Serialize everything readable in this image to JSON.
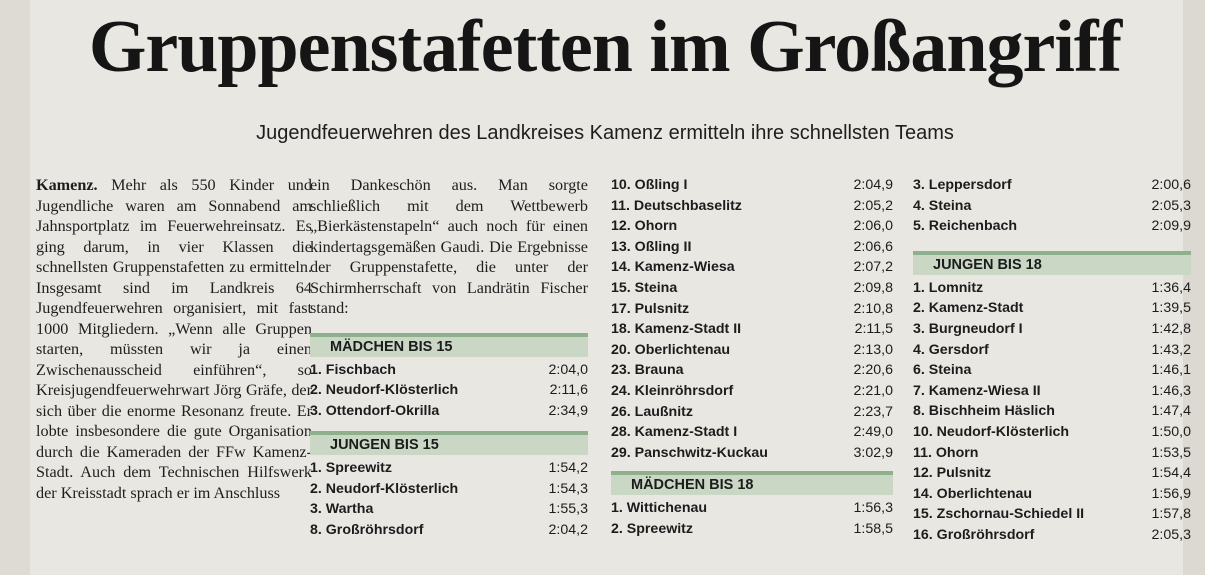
{
  "headline": "Gruppenstafetten im Großangriff",
  "subheadline": "Jugendfeuerwehren des Landkreises Kamenz ermitteln ihre schnellsten Teams",
  "article": {
    "lead": "Kamenz.",
    "para1": " Mehr als 550 Kinder und Jugendliche waren am Sonnabend am Jahnsportplatz im Feuerwehreinsatz. Es ging darum, in vier Klassen die schnellsten Gruppenstafetten zu ermitteln. Insgesamt sind im Landkreis 64 Jugendfeuerwehren organisiert, mit fast 1000 Mitgliedern. „Wenn alle Gruppen starten, müssten wir ja einen Zwischenausscheid einführen“, so Kreisjugendfeuerwehrwart Jörg Gräfe, der sich über die enorme Resonanz freute. Er lobte insbesondere die gute Organisation durch die Kameraden der FFw Kamenz-Stadt. Auch dem Technischen Hilfswerk der Kreisstadt sprach er im Anschluss",
    "para2": "ein Dankeschön aus. Man sorgte schließlich mit dem Wettbewerb „Bierkästenstapeln“ auch noch für einen kindertagsgemäßen Gaudi. Die Ergebnisse der Gruppenstafette, die unter der Schirmherrschaft von Landrätin Fischer stand:"
  },
  "sections": {
    "maedchen15": {
      "title": "MÄDCHEN BIS 15",
      "rows": [
        {
          "team": "1. Fischbach",
          "time": "2:04,0"
        },
        {
          "team": "2. Neudorf-Klösterlich",
          "time": "2:11,6"
        },
        {
          "team": "3. Ottendorf-Okrilla",
          "time": "2:34,9"
        }
      ]
    },
    "jungen15": {
      "title": "JUNGEN BIS 15",
      "rows": [
        {
          "team": "1. Spreewitz",
          "time": "1:54,2"
        },
        {
          "team": "2. Neudorf-Klösterlich",
          "time": "1:54,3"
        },
        {
          "team": "3. Wartha",
          "time": "1:55,3"
        },
        {
          "team": "8. Großröhrsdorf",
          "time": "2:04,2"
        }
      ]
    },
    "jungen15_cont": {
      "rows": [
        {
          "team": "10. Oßling I",
          "time": "2:04,9"
        },
        {
          "team": "11. Deutschbaselitz",
          "time": "2:05,2"
        },
        {
          "team": "12. Ohorn",
          "time": "2:06,0"
        },
        {
          "team": "13. Oßling II",
          "time": "2:06,6"
        },
        {
          "team": "14. Kamenz-Wiesa",
          "time": "2:07,2"
        },
        {
          "team": "15. Steina",
          "time": "2:09,8"
        },
        {
          "team": "17. Pulsnitz",
          "time": "2:10,8"
        },
        {
          "team": "18. Kamenz-Stadt II",
          "time": "2:11,5"
        },
        {
          "team": "20. Oberlichtenau",
          "time": "2:13,0"
        },
        {
          "team": "23. Brauna",
          "time": "2:20,6"
        },
        {
          "team": "24. Kleinröhrsdorf",
          "time": "2:21,0"
        },
        {
          "team": "26. Laußnitz",
          "time": "2:23,7"
        },
        {
          "team": "28. Kamenz-Stadt I",
          "time": "2:49,0"
        },
        {
          "team": "29. Panschwitz-Kuckau",
          "time": "3:02,9"
        }
      ]
    },
    "maedchen18": {
      "title": "MÄDCHEN BIS 18",
      "rows": [
        {
          "team": "1. Wittichenau",
          "time": "1:56,3"
        },
        {
          "team": "2. Spreewitz",
          "time": "1:58,5"
        }
      ]
    },
    "maedchen18_cont": {
      "rows": [
        {
          "team": "3. Leppersdorf",
          "time": "2:00,6"
        },
        {
          "team": "4. Steina",
          "time": "2:05,3"
        },
        {
          "team": "5. Reichenbach",
          "time": "2:09,9"
        }
      ]
    },
    "jungen18": {
      "title": "JUNGEN BIS 18",
      "rows": [
        {
          "team": "1. Lomnitz",
          "time": "1:36,4"
        },
        {
          "team": "2. Kamenz-Stadt",
          "time": "1:39,5"
        },
        {
          "team": "3. Burgneudorf I",
          "time": "1:42,8"
        },
        {
          "team": "4. Gersdorf",
          "time": "1:43,2"
        },
        {
          "team": "6. Steina",
          "time": "1:46,1"
        },
        {
          "team": "7. Kamenz-Wiesa II",
          "time": "1:46,3"
        },
        {
          "team": "8. Bischheim Häslich",
          "time": "1:47,4"
        },
        {
          "team": "10. Neudorf-Klösterlich",
          "time": "1:50,0"
        },
        {
          "team": "11. Ohorn",
          "time": "1:53,5"
        },
        {
          "team": "12. Pulsnitz",
          "time": "1:54,4"
        },
        {
          "team": "14. Oberlichtenau",
          "time": "1:56,9"
        },
        {
          "team": "15. Zschornau-Schiedel II",
          "time": "1:57,8"
        },
        {
          "team": "16. Großröhrsdorf",
          "time": "2:05,3"
        }
      ]
    }
  },
  "colors": {
    "section_band": "#c9d7c4",
    "section_rule": "#8fb08c",
    "paper": "#e9e7e2"
  }
}
